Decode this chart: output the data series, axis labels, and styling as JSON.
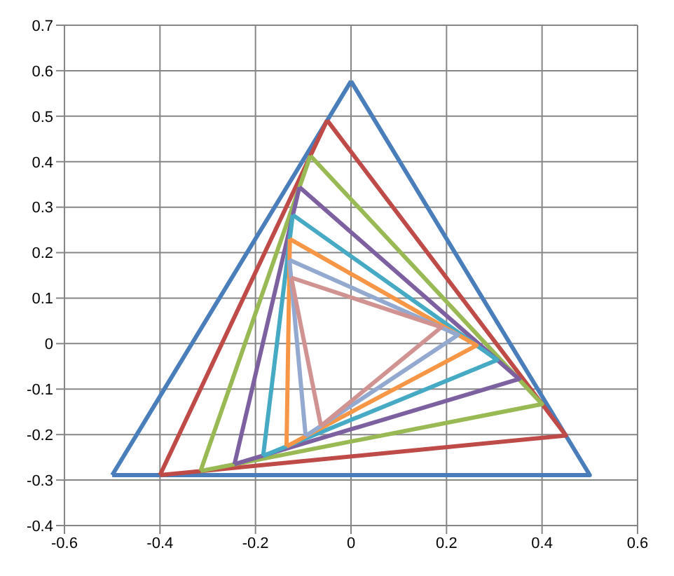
{
  "chart_data": {
    "type": "line",
    "marker": "none",
    "line_style": "solid",
    "grid": true,
    "legend": false,
    "xlim": [
      -0.6,
      0.6
    ],
    "xticks": [
      -0.6,
      -0.4,
      -0.2,
      0,
      0.2,
      0.4,
      0.6
    ],
    "ylim": [
      -0.4,
      0.7
    ],
    "yticks": [
      -0.4,
      -0.3,
      -0.2,
      -0.1,
      0,
      0.1,
      0.2,
      0.3,
      0.4,
      0.5,
      0.6,
      0.7
    ],
    "series": [
      {
        "color": "#4a7ebb",
        "x": [
          -0.5,
          0.5,
          0
        ],
        "values": [
          -0.289,
          -0.289,
          0.577
        ]
      },
      {
        "color": "#4a7ebb",
        "x": [
          0,
          -0.5
        ],
        "values": [
          0.577,
          -0.289
        ]
      },
      {
        "color": "#be4b48",
        "x": [
          -0.4,
          0.45,
          -0.05
        ],
        "values": [
          -0.289,
          -0.202,
          0.491
        ]
      },
      {
        "color": "#be4b48",
        "x": [
          -0.05,
          -0.4
        ],
        "values": [
          0.491,
          -0.289
        ]
      },
      {
        "color": "#98b954",
        "x": [
          -0.315,
          0.4,
          -0.085
        ],
        "values": [
          -0.28,
          -0.133,
          0.413
        ]
      },
      {
        "color": "#98b954",
        "x": [
          -0.085,
          -0.315
        ],
        "values": [
          0.413,
          -0.28
        ]
      },
      {
        "color": "#7d60a0",
        "x": [
          -0.244,
          0.352,
          -0.108
        ],
        "values": [
          -0.265,
          -0.078,
          0.344
        ]
      },
      {
        "color": "#7d60a0",
        "x": [
          -0.108,
          -0.244
        ],
        "values": [
          0.344,
          -0.265
        ]
      },
      {
        "color": "#46aac5",
        "x": [
          -0.184,
          0.306,
          -0.122
        ],
        "values": [
          -0.247,
          -0.036,
          0.283
        ]
      },
      {
        "color": "#46aac5",
        "x": [
          -0.122,
          -0.184
        ],
        "values": [
          0.283,
          -0.247
        ]
      },
      {
        "color": "#f79646",
        "x": [
          -0.135,
          0.263,
          -0.128
        ],
        "values": [
          -0.226,
          -0.004,
          0.23
        ]
      },
      {
        "color": "#f79646",
        "x": [
          -0.128,
          -0.135
        ],
        "values": [
          0.23,
          -0.226
        ]
      },
      {
        "color": "#93a9cf",
        "x": [
          -0.095,
          0.224,
          -0.129
        ],
        "values": [
          -0.203,
          0.019,
          0.184
        ]
      },
      {
        "color": "#93a9cf",
        "x": [
          -0.129,
          -0.095
        ],
        "values": [
          0.184,
          -0.203
        ]
      },
      {
        "color": "#d19392",
        "x": [
          -0.063,
          0.189,
          -0.125
        ],
        "values": [
          -0.181,
          0.036,
          0.145
        ]
      },
      {
        "color": "#d19392",
        "x": [
          -0.125,
          -0.063
        ],
        "values": [
          0.145,
          -0.181
        ]
      }
    ]
  }
}
